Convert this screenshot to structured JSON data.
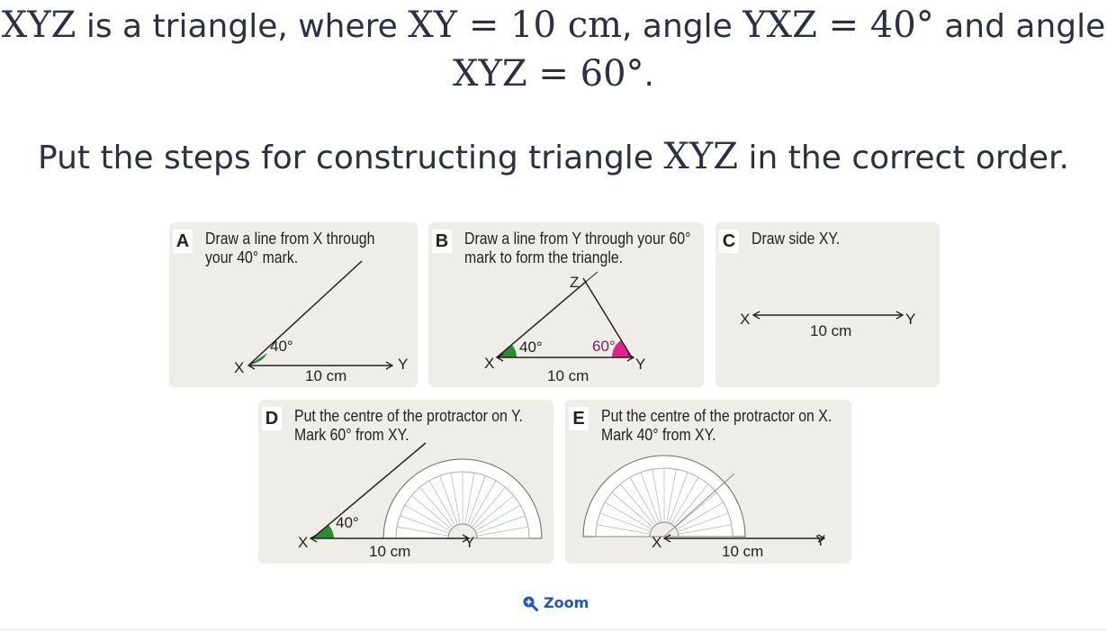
{
  "question": {
    "tri": "XYZ",
    "t1": " is a triangle, where ",
    "m_xy": "XY = 10 cm",
    "t2": ", angle ",
    "m_yxz": "YXZ = 40°",
    "t3": " and angle",
    "m_xyz": "XYZ = 60°",
    "t4": "."
  },
  "instruction": {
    "pre": "Put the steps for constructing triangle ",
    "tri": "XYZ",
    "post": " in the correct order."
  },
  "cards": {
    "a": {
      "letter": "A",
      "line1": "Draw a line from X through",
      "line2": "your 40° mark.",
      "x": "X",
      "y": "Y",
      "len": "10 cm",
      "angle": "40°"
    },
    "b": {
      "letter": "B",
      "line1": "Draw a line from Y through your 60°",
      "line2": "mark to form the triangle.",
      "x": "X",
      "y": "Y",
      "z": "Z",
      "len": "10 cm",
      "angle40": "40°",
      "angle60": "60°"
    },
    "c": {
      "letter": "C",
      "line1": "Draw side XY.",
      "x": "X",
      "y": "Y",
      "len": "10 cm"
    },
    "d": {
      "letter": "D",
      "line1": "Put the centre of the protractor on Y.",
      "line2": "Mark 60° from XY.",
      "x": "X",
      "y": "Y",
      "len": "10 cm",
      "angle": "40°"
    },
    "e": {
      "letter": "E",
      "line1": "Put the centre of the protractor on X.",
      "line2": "Mark 40° from XY.",
      "x": "X",
      "y": "Y",
      "len": "10 cm"
    }
  },
  "zoom": {
    "label": "Zoom",
    "icon": "magnifier-plus-icon"
  },
  "colors": {
    "text": "#2b3044",
    "card": "#efede8",
    "green": "#2e8b2e",
    "pink": "#e0258f",
    "link": "#1f57b8"
  }
}
